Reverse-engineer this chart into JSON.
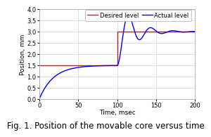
{
  "title": "Fig. 1. Position of the movable core versus time",
  "xlabel": "Time, msec",
  "ylabel": "Position, mm",
  "xlim": [
    0,
    200
  ],
  "ylim": [
    0.0,
    4.0
  ],
  "xticks": [
    0,
    50,
    100,
    150,
    200
  ],
  "yticks": [
    0.0,
    0.5,
    1.0,
    1.5,
    2.0,
    2.5,
    3.0,
    3.5,
    4.0
  ],
  "desired_color": "#FF0000",
  "actual_color": "#0000FF",
  "legend_labels": [
    "Desired level",
    "Actual level"
  ],
  "background_color": "#FFFFFF",
  "grid_color": "#D0D0D0",
  "title_fontsize": 8.5,
  "axis_fontsize": 6.5,
  "tick_fontsize": 6,
  "legend_fontsize": 6,
  "tau1": 18.0,
  "tau2_env": 20.0,
  "omega2": 0.22,
  "overshoot_amp": 0.33,
  "step1_level": 1.5,
  "step2_level": 3.0,
  "step_time": 100
}
